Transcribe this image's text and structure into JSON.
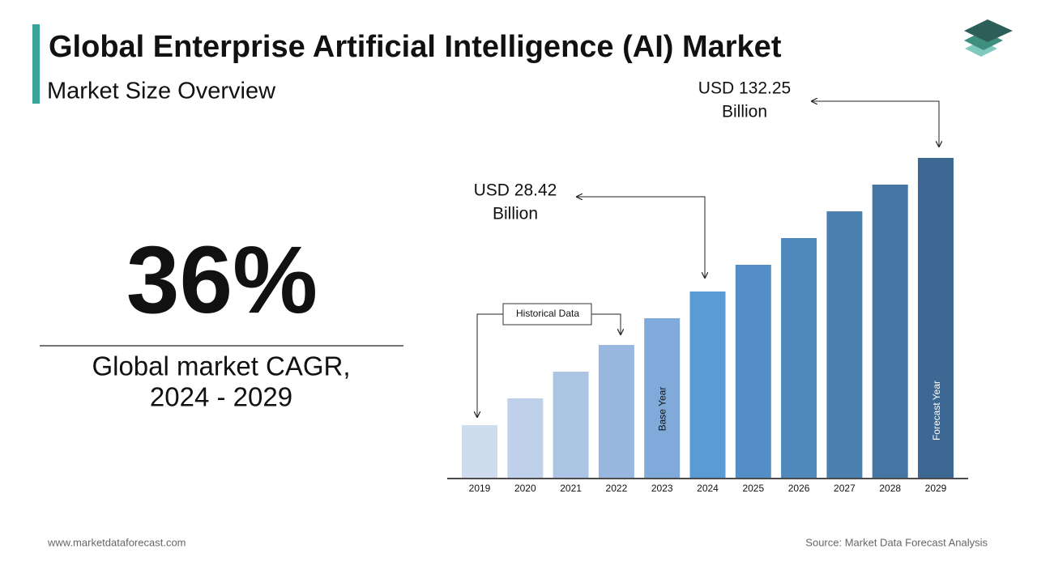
{
  "header": {
    "title": "Global Enterprise Artificial Intelligence (AI) Market",
    "subtitle": "Market Size Overview"
  },
  "stat": {
    "value": "36%",
    "label_lines": [
      "Global market CAGR,",
      "2024 - 2029"
    ]
  },
  "chart": {
    "categories": [
      "2019",
      "2020",
      "2021",
      "2022",
      "2023",
      "2024",
      "2025",
      "2026",
      "2027",
      "2028",
      "2029"
    ],
    "colors": [
      "#cfdcee",
      "#bfd1ea",
      "#adc5e5",
      "#98b8e0",
      "#80aad9",
      "#5b9bd5",
      "#538fc6",
      "#4f88bb",
      "#4a7fb0",
      "#4575a3",
      "#3d6893"
    ],
    "historical_label": "Historical Data",
    "base_year_label": "Base Year",
    "forecast_year_label": "Forecast Year",
    "start_callout": [
      "USD 28.42",
      "Billion"
    ],
    "end_callout": [
      "USD 132.25",
      "Billion"
    ]
  },
  "footer": {
    "website": "www.marketdataforecast.com",
    "source": "Source: Market Data Forecast Analysis"
  }
}
